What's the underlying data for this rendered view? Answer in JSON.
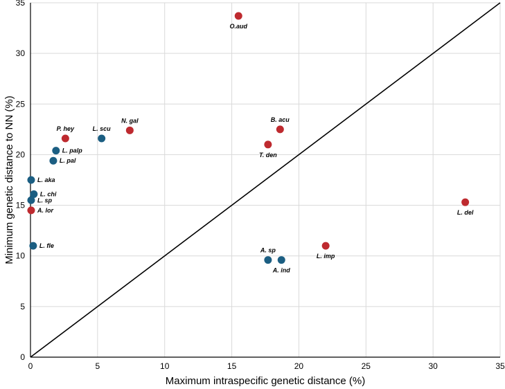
{
  "chart_data": {
    "type": "scatter",
    "title": "",
    "xlabel": "Maximum intraspecific genetic distance (%)",
    "ylabel": "Minimum genetic distance to NN (%)",
    "xlim": [
      0,
      35
    ],
    "ylim": [
      0,
      35
    ],
    "x_ticks": [
      0,
      5,
      10,
      15,
      20,
      25,
      30,
      35
    ],
    "y_ticks": [
      0,
      5,
      10,
      15,
      20,
      25,
      30,
      35
    ],
    "grid": true,
    "reference_line": {
      "from": [
        0,
        0
      ],
      "to": [
        35,
        35
      ]
    },
    "colors": {
      "blue": "#1b5e82",
      "red": "#be2a2f",
      "grid": "#d9d9d9"
    },
    "points": [
      {
        "label": "O.aud",
        "x": 15.5,
        "y": 33.7,
        "color": "red",
        "label_pos": "below"
      },
      {
        "label": "N. gal",
        "x": 7.4,
        "y": 22.4,
        "color": "red",
        "label_pos": "above"
      },
      {
        "label": "P. hey",
        "x": 2.6,
        "y": 21.6,
        "color": "red",
        "label_pos": "above"
      },
      {
        "label": "L. scu",
        "x": 5.3,
        "y": 21.6,
        "color": "blue",
        "label_pos": "above"
      },
      {
        "label": "B. acu",
        "x": 18.6,
        "y": 22.5,
        "color": "red",
        "label_pos": "above"
      },
      {
        "label": "T. den",
        "x": 17.7,
        "y": 21.0,
        "color": "red",
        "label_pos": "below"
      },
      {
        "label": "L. palp",
        "x": 1.9,
        "y": 20.4,
        "color": "blue",
        "label_pos": "right"
      },
      {
        "label": "L. pal",
        "x": 1.7,
        "y": 19.4,
        "color": "blue",
        "label_pos": "right"
      },
      {
        "label": "L. aka",
        "x": 0.05,
        "y": 17.5,
        "color": "blue",
        "label_pos": "right"
      },
      {
        "label": "L. chi",
        "x": 0.25,
        "y": 16.1,
        "color": "blue",
        "label_pos": "right"
      },
      {
        "label": "L. sp",
        "x": 0.05,
        "y": 15.5,
        "color": "blue",
        "label_pos": "right"
      },
      {
        "label": "A. lor",
        "x": 0.05,
        "y": 14.5,
        "color": "red",
        "label_pos": "right"
      },
      {
        "label": "L. fle",
        "x": 0.2,
        "y": 11.0,
        "color": "blue",
        "label_pos": "right"
      },
      {
        "label": "A. sp",
        "x": 17.7,
        "y": 9.6,
        "color": "blue",
        "label_pos": "above"
      },
      {
        "label": "A. ind",
        "x": 18.7,
        "y": 9.6,
        "color": "blue",
        "label_pos": "below"
      },
      {
        "label": "L. imp",
        "x": 22.0,
        "y": 11.0,
        "color": "red",
        "label_pos": "below"
      },
      {
        "label": "L. del",
        "x": 32.4,
        "y": 15.3,
        "color": "red",
        "label_pos": "below"
      }
    ]
  }
}
